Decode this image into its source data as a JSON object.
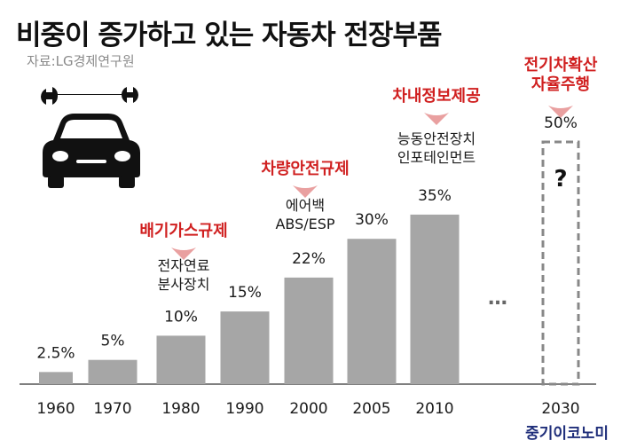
{
  "header": {
    "title": "비중이 증가하고 있는 자동차 전장부품",
    "source": "자료:LG경제연구원"
  },
  "brand": "중기이코노미",
  "icon": "car-wrench-icon",
  "colors": {
    "bar": "#a6a6a6",
    "accent": "#d02020",
    "text": "#1a1a1a",
    "axis": "#555555"
  },
  "chart_data": {
    "type": "bar",
    "categories": [
      "1960",
      "1970",
      "1980",
      "1990",
      "2000",
      "2005",
      "2010",
      "2030"
    ],
    "values": [
      2.5,
      5,
      10,
      15,
      22,
      30,
      35,
      50
    ],
    "value_labels": [
      "2.5%",
      "5%",
      "10%",
      "15%",
      "22%",
      "30%",
      "35%",
      "50%"
    ],
    "projected": [
      "2030"
    ],
    "projected_mark": "?",
    "gap_marker": "…",
    "ylim": [
      0,
      50
    ],
    "annotations": [
      {
        "category": "1980",
        "title": "배기가스규제",
        "lines": [
          "전자연료",
          "분사장치"
        ]
      },
      {
        "category": "2000",
        "title": "차량안전규제",
        "lines": [
          "에어백",
          "ABS/ESP"
        ]
      },
      {
        "category": "2010",
        "title": "차내정보제공",
        "lines": [
          "능동안전장치",
          "인포테인먼트"
        ]
      },
      {
        "category": "2030",
        "title": "전기차확산\n자율주행",
        "lines": []
      }
    ]
  }
}
